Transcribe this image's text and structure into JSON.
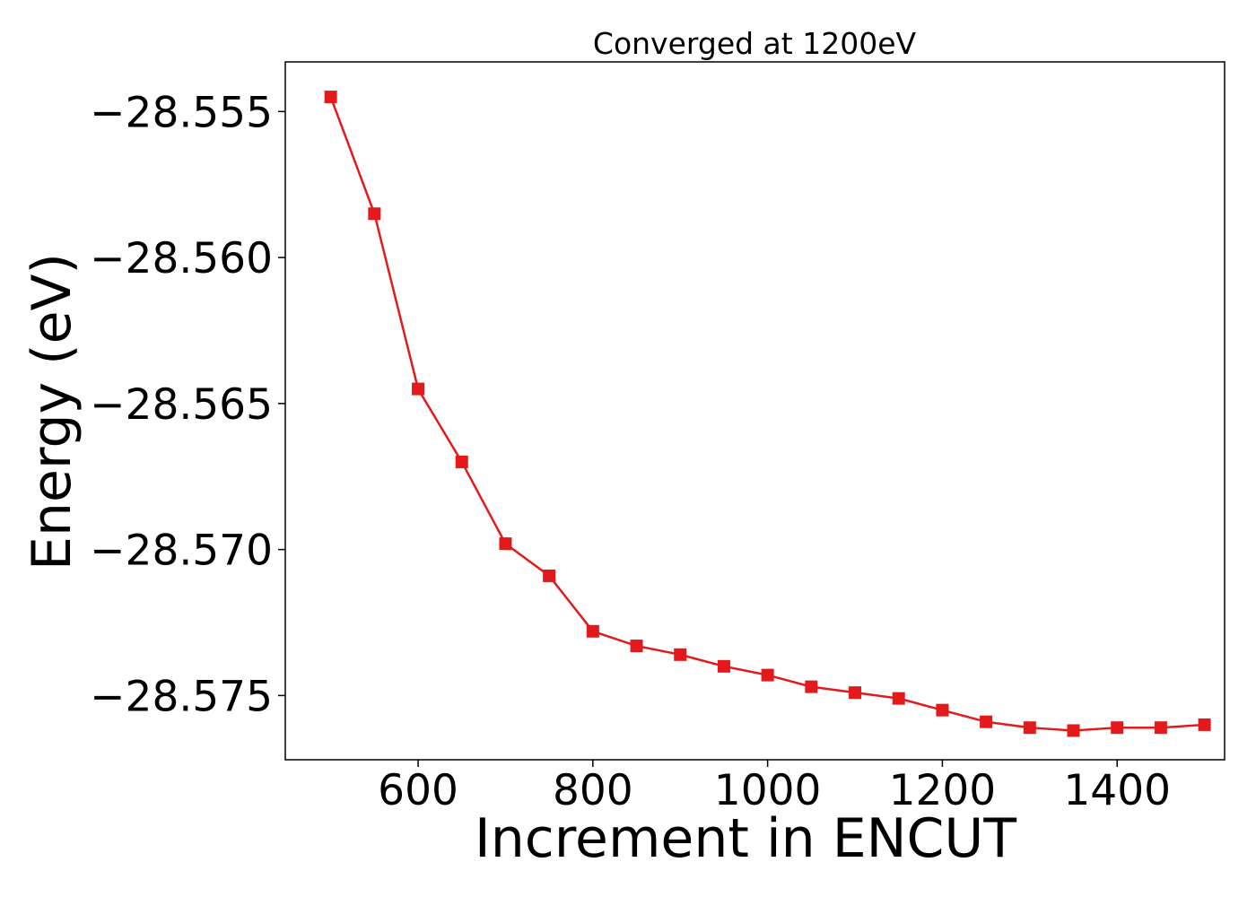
{
  "chart_data": {
    "type": "line",
    "title": "Converged at 1200eV",
    "xlabel": "Increment in ENCUT",
    "ylabel": "Energy (eV)",
    "xlim": [
      448,
      1523
    ],
    "ylim": [
      -28.5772,
      -28.5533
    ],
    "xticks": [
      600,
      800,
      1000,
      1200,
      1400
    ],
    "yticks": [
      -28.555,
      -28.56,
      -28.565,
      -28.57,
      -28.575
    ],
    "xtick_labels": [
      "600",
      "800",
      "1000",
      "1200",
      "1400"
    ],
    "ytick_labels": [
      "−28.555",
      "−28.560",
      "−28.565",
      "−28.570",
      "−28.575"
    ],
    "grid": false,
    "marker": "square",
    "color": "#e31a1c",
    "series": [
      {
        "x": [
          500,
          550,
          600,
          650,
          700,
          750,
          800,
          850,
          900,
          950,
          1000,
          1050,
          1100,
          1150,
          1200,
          1250,
          1300,
          1350,
          1400,
          1450,
          1500
        ],
        "y": [
          -28.5545,
          -28.5585,
          -28.5645,
          -28.567,
          -28.5698,
          -28.5709,
          -28.5728,
          -28.5733,
          -28.5736,
          -28.574,
          -28.5743,
          -28.5747,
          -28.5749,
          -28.5751,
          -28.5755,
          -28.5759,
          -28.5761,
          -28.5762,
          -28.5761,
          -28.5761,
          -28.576
        ]
      }
    ]
  }
}
